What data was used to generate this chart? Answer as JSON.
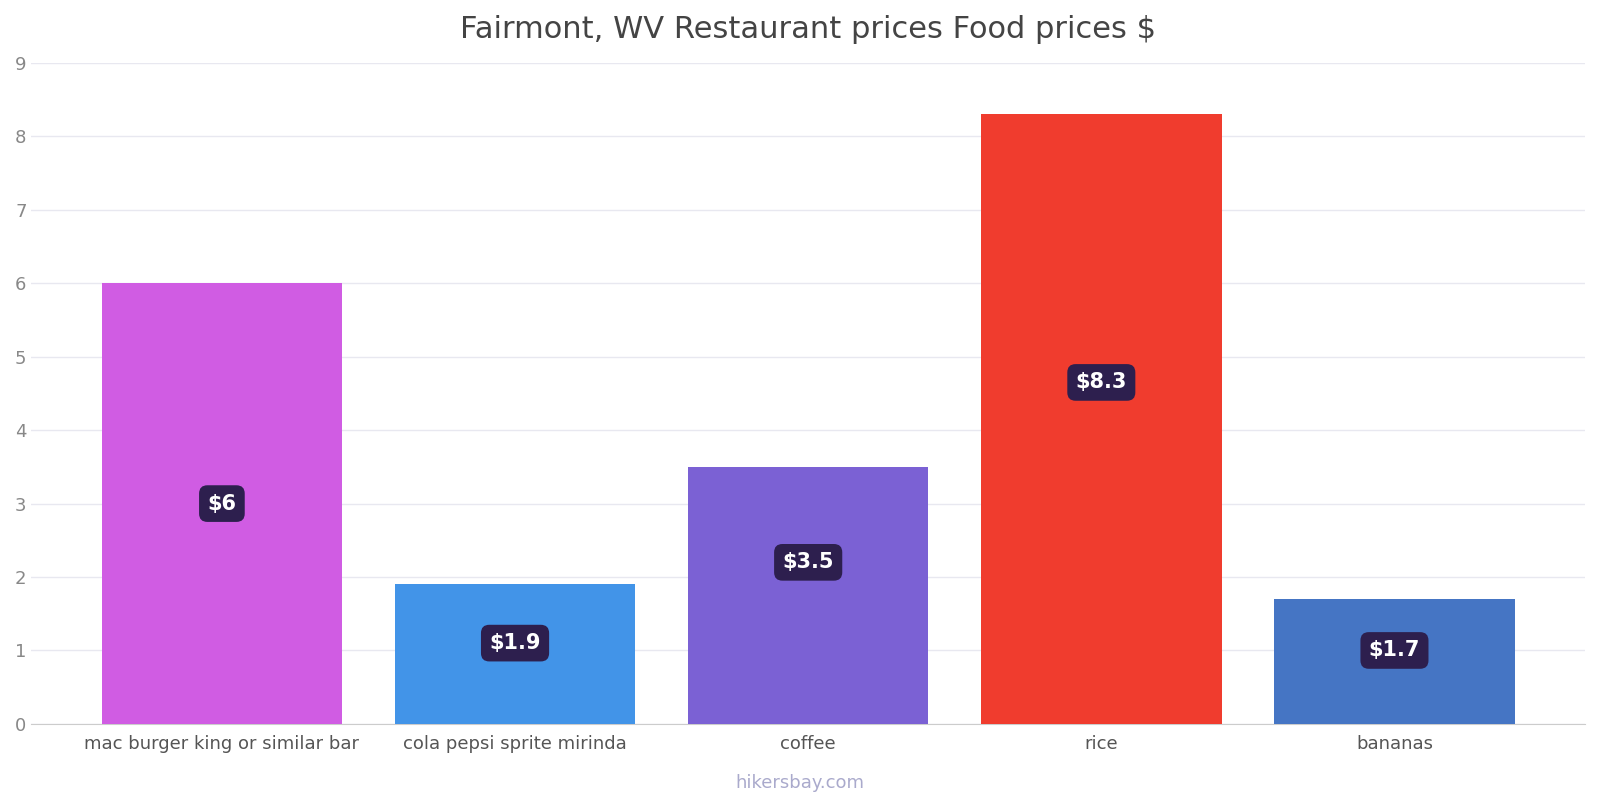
{
  "title": "Fairmont, WV Restaurant prices Food prices $",
  "categories": [
    "mac burger king or similar bar",
    "cola pepsi sprite mirinda",
    "coffee",
    "rice",
    "bananas"
  ],
  "values": [
    6.0,
    1.9,
    3.5,
    8.3,
    1.7
  ],
  "bar_colors": [
    "#d05ce3",
    "#4294e8",
    "#7b61d4",
    "#f03c2e",
    "#4575c4"
  ],
  "label_texts": [
    "$6",
    "$1.9",
    "$3.5",
    "$8.3",
    "$1.7"
  ],
  "label_y_positions": [
    3.0,
    1.1,
    2.2,
    4.65,
    1.0
  ],
  "label_bg_color": "#2d1f4e",
  "label_text_color": "#ffffff",
  "ylim": [
    0,
    9
  ],
  "yticks": [
    0,
    1,
    2,
    3,
    4,
    5,
    6,
    7,
    8,
    9
  ],
  "grid_color": "#e8e8f0",
  "background_color": "#ffffff",
  "title_fontsize": 22,
  "tick_fontsize": 13,
  "bar_width": 0.82,
  "watermark": "hikersbay.com",
  "watermark_color": "#aaaacc",
  "label_fontsize": 15
}
